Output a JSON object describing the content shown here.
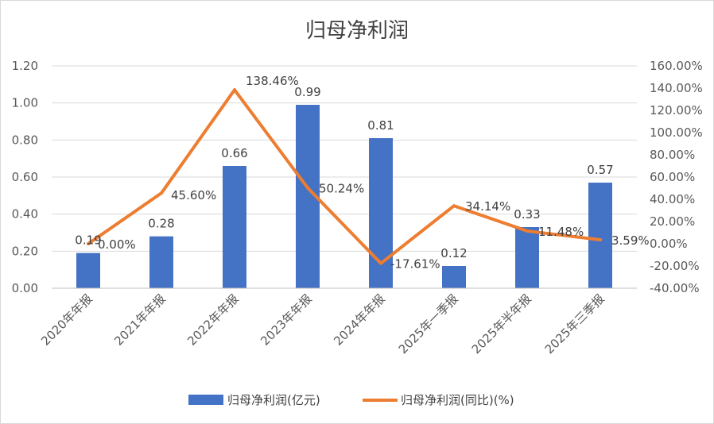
{
  "chart_data": {
    "type": "bar+line",
    "title": "归母净利润",
    "categories": [
      "2020年年报",
      "2021年年报",
      "2022年年报",
      "2023年年报",
      "2024年年报",
      "2025年一季报",
      "2025年半年报",
      "2025年三季报"
    ],
    "series": [
      {
        "name": "归母净利润(亿元)",
        "type": "bar",
        "axis": "left",
        "color": "#4472c4",
        "values": [
          0.19,
          0.28,
          0.66,
          0.99,
          0.81,
          0.12,
          0.33,
          0.57
        ],
        "labels": [
          "0.19",
          "0.28",
          "0.66",
          "0.99",
          "0.81",
          "0.12",
          "0.33",
          "0.57"
        ]
      },
      {
        "name": "归母净利润(同比)(%)",
        "type": "line",
        "axis": "right",
        "color": "#ed7d31",
        "values": [
          0.0,
          45.6,
          138.46,
          50.24,
          -17.61,
          34.14,
          11.48,
          3.59
        ],
        "labels": [
          "0.00%",
          "45.60%",
          "138.46%",
          "50.24%",
          "-17.61%",
          "34.14%",
          "11.48%",
          "3.59%"
        ]
      }
    ],
    "y_left": {
      "min": 0,
      "max": 1.2,
      "ticks": [
        0,
        0.2,
        0.4,
        0.6,
        0.8,
        1.0,
        1.2
      ],
      "tick_labels": [
        "0.00",
        "0.20",
        "0.40",
        "0.60",
        "0.80",
        "1.00",
        "1.20"
      ]
    },
    "y_right": {
      "min": -40,
      "max": 160,
      "ticks": [
        -40,
        -20,
        0,
        20,
        40,
        60,
        80,
        100,
        120,
        140,
        160
      ],
      "tick_labels": [
        "-40.00%",
        "-20.00%",
        "0.00%",
        "20.00%",
        "40.00%",
        "60.00%",
        "80.00%",
        "100.00%",
        "120.00%",
        "140.00%",
        "160.00%"
      ]
    },
    "grid": true,
    "legend_position": "bottom"
  }
}
